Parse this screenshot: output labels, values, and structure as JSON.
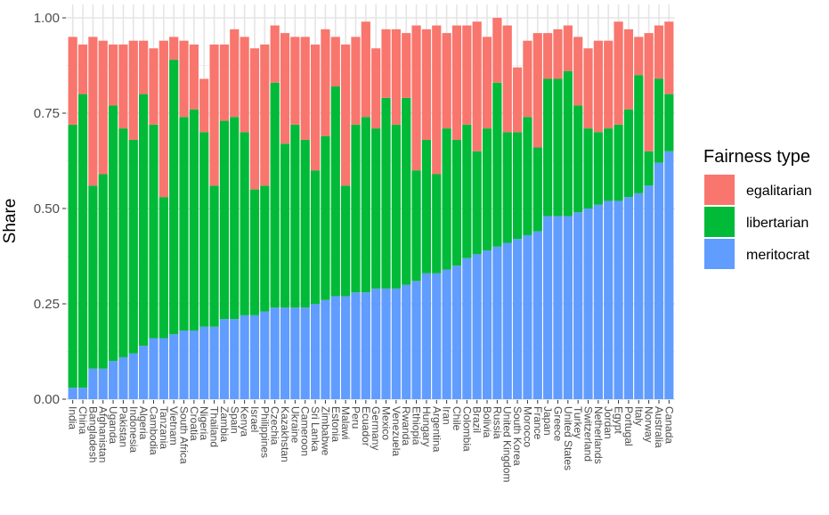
{
  "chart_data": {
    "type": "bar",
    "stacked": true,
    "title": "",
    "xlabel": "",
    "ylabel": "Share",
    "ylim": [
      0,
      1
    ],
    "yticks": [
      0.0,
      0.25,
      0.5,
      0.75,
      1.0
    ],
    "ytick_labels": [
      "0.00",
      "0.25",
      "0.50",
      "0.75",
      "1.00"
    ],
    "grid": true,
    "legend": {
      "title": "Fairness type",
      "position": "right"
    },
    "categories": [
      "India",
      "China",
      "Bangladesh",
      "Afghanistan",
      "Uganda",
      "Pakistan",
      "Indonesia",
      "Algeria",
      "Cambodia",
      "Tanzania",
      "Vietnam",
      "South Africa",
      "Croatia",
      "Nigeria",
      "Thailand",
      "Zambia",
      "Spain",
      "Kenya",
      "Israel",
      "Philippines",
      "Czechia",
      "Kazakhstan",
      "Ukraine",
      "Cameroon",
      "Sri Lanka",
      "Zimbabwe",
      "Estonia",
      "Malawi",
      "Peru",
      "Ecuador",
      "Germany",
      "Mexico",
      "Venezuela",
      "Rwanda",
      "Ethiopia",
      "Hungary",
      "Argentina",
      "Iran",
      "Chile",
      "Colombia",
      "Brazil",
      "Bolivia",
      "Russia",
      "United Kingdom",
      "South Korea",
      "Morocco",
      "France",
      "Japan",
      "Greece",
      "United States",
      "Turkey",
      "Switzerland",
      "Netherlands",
      "Jordan",
      "Egypt",
      "Portugal",
      "Italy",
      "Norway",
      "Australia",
      "Canada"
    ],
    "series": [
      {
        "name": "meritocrat",
        "color": "#619CFF",
        "values": [
          0.03,
          0.03,
          0.08,
          0.08,
          0.1,
          0.11,
          0.12,
          0.14,
          0.16,
          0.16,
          0.17,
          0.18,
          0.18,
          0.19,
          0.19,
          0.21,
          0.21,
          0.22,
          0.22,
          0.23,
          0.24,
          0.24,
          0.24,
          0.24,
          0.25,
          0.26,
          0.27,
          0.27,
          0.28,
          0.28,
          0.29,
          0.29,
          0.29,
          0.3,
          0.31,
          0.33,
          0.33,
          0.34,
          0.35,
          0.37,
          0.38,
          0.39,
          0.4,
          0.41,
          0.42,
          0.43,
          0.44,
          0.48,
          0.48,
          0.48,
          0.49,
          0.5,
          0.51,
          0.52,
          0.52,
          0.53,
          0.54,
          0.56,
          0.62,
          0.65
        ]
      },
      {
        "name": "libertarian",
        "color": "#00BA38",
        "values": [
          0.69,
          0.77,
          0.48,
          0.51,
          0.67,
          0.6,
          0.56,
          0.66,
          0.56,
          0.37,
          0.72,
          0.56,
          0.58,
          0.51,
          0.37,
          0.52,
          0.53,
          0.48,
          0.33,
          0.33,
          0.59,
          0.43,
          0.48,
          0.44,
          0.35,
          0.43,
          0.55,
          0.29,
          0.44,
          0.46,
          0.42,
          0.5,
          0.43,
          0.49,
          0.29,
          0.35,
          0.26,
          0.37,
          0.33,
          0.35,
          0.27,
          0.32,
          0.43,
          0.29,
          0.28,
          0.31,
          0.22,
          0.36,
          0.36,
          0.38,
          0.28,
          0.21,
          0.19,
          0.19,
          0.2,
          0.23,
          0.31,
          0.09,
          0.22,
          0.15
        ]
      },
      {
        "name": "egalitarian",
        "color": "#F8766D",
        "values": [
          0.23,
          0.13,
          0.39,
          0.35,
          0.16,
          0.22,
          0.26,
          0.14,
          0.2,
          0.41,
          0.06,
          0.2,
          0.17,
          0.14,
          0.37,
          0.2,
          0.23,
          0.25,
          0.37,
          0.37,
          0.15,
          0.29,
          0.23,
          0.27,
          0.33,
          0.28,
          0.13,
          0.37,
          0.23,
          0.25,
          0.21,
          0.18,
          0.25,
          0.17,
          0.38,
          0.29,
          0.39,
          0.25,
          0.3,
          0.26,
          0.34,
          0.24,
          0.17,
          0.28,
          0.17,
          0.2,
          0.3,
          0.12,
          0.13,
          0.12,
          0.18,
          0.21,
          0.24,
          0.23,
          0.27,
          0.21,
          0.1,
          0.31,
          0.14,
          0.19
        ]
      }
    ]
  }
}
